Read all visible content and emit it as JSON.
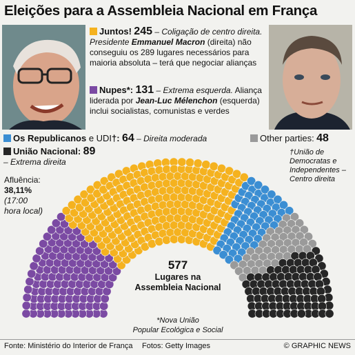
{
  "page": {
    "title": "Eleições para a Assembleia Nacional em França"
  },
  "photos": {
    "left_alt": "Jean-Luc Mélenchon",
    "right_alt": "Emmanuel Macron"
  },
  "legend": {
    "juntos": {
      "name": "Juntos!",
      "seats": "245",
      "desc1": "– Coligação de centro direita. Presidente ",
      "desc_bold": "Emmanuel Macron",
      "desc2": " (direita) não conseguiu os 289 lugares necessários para maioria absoluta – terá que negociar alianças"
    },
    "nupes": {
      "name": "Nupes*:",
      "seats": "131",
      "desc1": "– Extrema esquerda.",
      "desc2": " Aliança liderada por ",
      "desc_bold": "Jean-Luc Mélenchon",
      "desc3": " (esquerda) inclui socialistas, comunistas e verdes"
    },
    "republicanos": {
      "name": "Os Republicanos",
      "joiner": " e UDI",
      "dagger": "†",
      "colon": ":",
      "seats": "64",
      "desc": "– Direita moderada"
    },
    "others": {
      "name": "Other parties:",
      "seats": "48"
    },
    "rn": {
      "name": "União Nacional:",
      "seats": "89",
      "desc": "– Extrema direita"
    },
    "udi_note": "†União de Democratas e Independentes – Centro direita",
    "turnout": {
      "label": "Afluência:",
      "value": "38,11%",
      "note": "(17:00 hora local)"
    }
  },
  "center": {
    "total": "577",
    "label_line1": "Lugares na",
    "label_line2": "Assembleia Nacional"
  },
  "nupes_note": {
    "line1": "*Nova União",
    "line2": "Popular Ecológica e Social"
  },
  "footer": {
    "source": "Fonte: Ministério do Interior de França",
    "photos": "Fotos: Getty Images",
    "credit": "© GRAPHIC NEWS"
  },
  "colors": {
    "juntos": "#f5b21f",
    "nupes": "#7b4aa3",
    "republicanos": "#3b8ed3",
    "rn": "#262626",
    "others": "#9a9a9a"
  },
  "chart_data": {
    "type": "parliament",
    "total": 577,
    "majority": 289,
    "series": [
      {
        "name": "Nupes",
        "values": [
          131
        ]
      },
      {
        "name": "Juntos!",
        "values": [
          245
        ]
      },
      {
        "name": "Os Republicanos e UDI",
        "values": [
          64
        ]
      },
      {
        "name": "Other parties",
        "values": [
          48
        ]
      },
      {
        "name": "União Nacional",
        "values": [
          89
        ]
      }
    ]
  }
}
